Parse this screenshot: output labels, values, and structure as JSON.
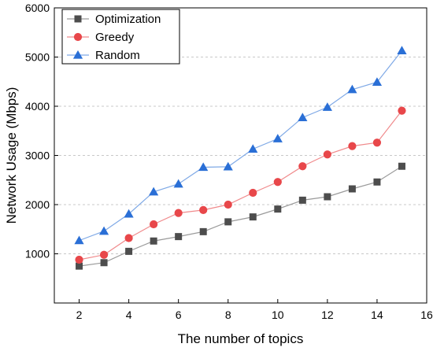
{
  "chart_data": {
    "type": "line",
    "title": "",
    "xlabel": "The number of topics",
    "ylabel": "Network Usage (Mbps)",
    "xlim": [
      1,
      16
    ],
    "ylim": [
      0,
      6000
    ],
    "xticks": [
      2,
      4,
      6,
      8,
      10,
      12,
      14,
      16
    ],
    "yticks": [
      1000,
      2000,
      3000,
      4000,
      5000,
      6000
    ],
    "grid": "horizontal-dashed",
    "legend_position": "top-left",
    "x": [
      2,
      3,
      4,
      5,
      6,
      7,
      8,
      9,
      10,
      11,
      12,
      13,
      14,
      15
    ],
    "series": [
      {
        "name": "Optimization",
        "color": "#4d4d4d",
        "line_color": "#9a9a9a",
        "marker": "square",
        "values": [
          750,
          820,
          1050,
          1260,
          1350,
          1450,
          1650,
          1750,
          1910,
          2090,
          2160,
          2320,
          2460,
          2780
        ]
      },
      {
        "name": "Greedy",
        "color": "#e8474a",
        "line_color": "#f08a8c",
        "marker": "circle",
        "values": [
          880,
          980,
          1320,
          1600,
          1830,
          1890,
          2000,
          2240,
          2460,
          2780,
          3020,
          3190,
          3260,
          3910
        ]
      },
      {
        "name": "Random",
        "color": "#2a6fd6",
        "line_color": "#7fa9e6",
        "marker": "triangle",
        "values": [
          1270,
          1460,
          1810,
          2260,
          2420,
          2760,
          2770,
          3130,
          3340,
          3770,
          3980,
          4340,
          4490,
          5130
        ]
      }
    ]
  }
}
